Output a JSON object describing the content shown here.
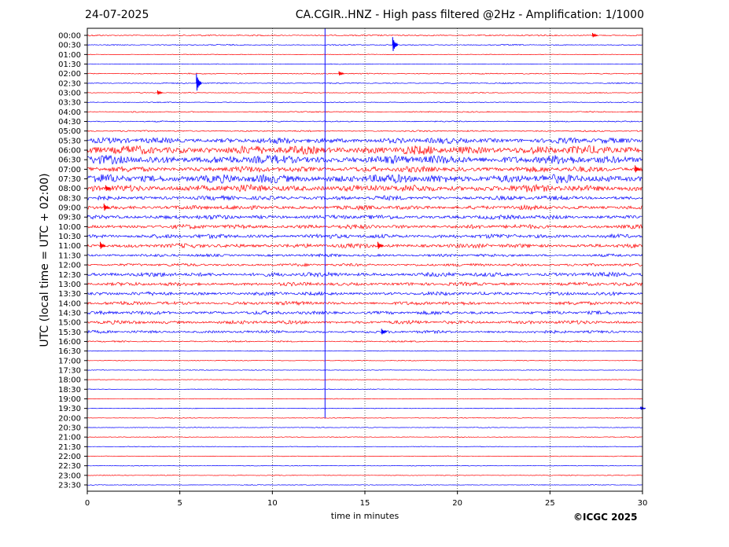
{
  "header": {
    "date": "24-07-2025",
    "title": "CA.CGIR..HNZ - High pass filtered @2Hz - Amplification: 1/1000"
  },
  "footer": {
    "copyright": "©ICGC 2025"
  },
  "colors": {
    "red": "#ff0000",
    "blue": "#0000ff"
  },
  "chart_data": {
    "type": "line",
    "xlabel": "time in minutes",
    "ylabel": "UTC (local time = UTC + 02:00)",
    "xlim": [
      0,
      30
    ],
    "x_ticks": [
      0,
      5,
      10,
      15,
      20,
      25,
      30
    ],
    "grid": "vertical dotted lines every 5 minutes",
    "row_labels": [
      "00:00",
      "00:30",
      "01:00",
      "01:30",
      "02:00",
      "02:30",
      "03:00",
      "03:30",
      "04:00",
      "04:30",
      "05:00",
      "05:30",
      "06:00",
      "06:30",
      "07:00",
      "07:30",
      "08:00",
      "08:30",
      "09:00",
      "09:30",
      "10:00",
      "10:30",
      "11:00",
      "11:30",
      "12:00",
      "12:30",
      "13:00",
      "13:30",
      "14:00",
      "14:30",
      "15:00",
      "15:30",
      "16:00",
      "16:30",
      "17:00",
      "17:30",
      "18:00",
      "18:30",
      "19:00",
      "19:30",
      "20:00",
      "20:30",
      "21:00",
      "21:30",
      "22:00",
      "22:30",
      "23:00",
      "23:30"
    ],
    "row_colors": [
      "red",
      "blue",
      "red",
      "blue",
      "red",
      "blue",
      "red",
      "blue",
      "red",
      "blue",
      "red",
      "blue",
      "red",
      "blue",
      "red",
      "blue",
      "red",
      "blue",
      "red",
      "blue",
      "red",
      "blue",
      "red",
      "blue",
      "red",
      "blue",
      "red",
      "blue",
      "red",
      "blue",
      "red",
      "blue",
      "red",
      "blue",
      "red",
      "blue",
      "red",
      "blue",
      "red",
      "blue",
      "red",
      "blue",
      "red",
      "blue",
      "red",
      "blue",
      "red",
      "blue"
    ],
    "noise_amplitude": [
      1,
      0.8,
      0.5,
      0.5,
      0.8,
      0.8,
      0.6,
      0.6,
      0.8,
      0.8,
      1,
      4,
      6,
      6,
      4,
      6,
      5,
      3,
      3,
      3,
      3,
      3,
      3,
      2,
      2,
      3,
      2.5,
      2.5,
      2.5,
      2.5,
      2.5,
      2,
      1,
      0.5,
      0.5,
      0.5,
      0.5,
      0.5,
      0.5,
      0.5,
      0.5,
      0.5,
      0.5,
      0.5,
      0.5,
      0.5,
      0.5,
      0.5
    ],
    "events": [
      {
        "row": "00:00",
        "minute": 27.3,
        "amplitude": 3
      },
      {
        "row": "00:30",
        "minute": 16.5,
        "amplitude": 10
      },
      {
        "row": "02:00",
        "minute": 13.6,
        "amplitude": 3
      },
      {
        "row": "02:30",
        "minute": 5.9,
        "amplitude": 12
      },
      {
        "row": "03:00",
        "minute": 3.8,
        "amplitude": 3
      },
      {
        "row": "07:00",
        "minute": 29.6,
        "amplitude": 5
      },
      {
        "row": "08:00",
        "minute": 1.0,
        "amplitude": 4
      },
      {
        "row": "09:00",
        "minute": 0.9,
        "amplitude": 5
      },
      {
        "row": "11:00",
        "minute": 0.7,
        "amplitude": 5
      },
      {
        "row": "11:00",
        "minute": 15.7,
        "amplitude": 5
      },
      {
        "row": "15:30",
        "minute": 15.9,
        "amplitude": 4
      },
      {
        "row": "19:30",
        "minute": 29.9,
        "amplitude": 2
      }
    ],
    "artifact": {
      "minute": 12.85,
      "from_row": "00:00",
      "to_row": "20:00"
    }
  }
}
